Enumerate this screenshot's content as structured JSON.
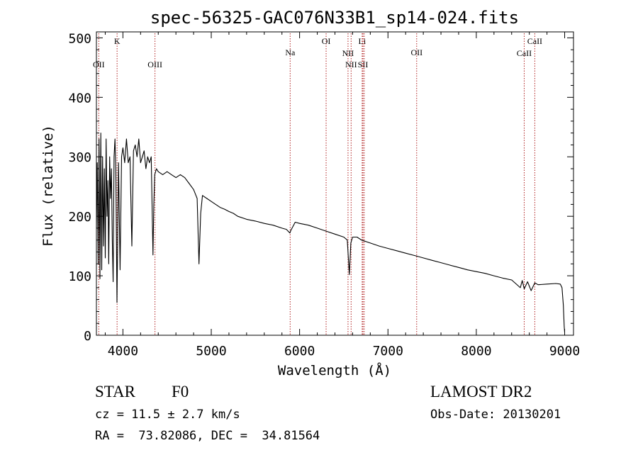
{
  "chart_data": {
    "type": "line",
    "title": "spec-56325-GAC076N33B1_sp14-024.fits",
    "xlabel": "Wavelength (Å)",
    "ylabel": "Flux (relative)",
    "xlim": [
      3700,
      9100
    ],
    "ylim": [
      0,
      510
    ],
    "xticks": [
      4000,
      5000,
      6000,
      7000,
      8000,
      9000
    ],
    "yticks": [
      0,
      100,
      200,
      300,
      400,
      500
    ],
    "grid": false,
    "series": [
      {
        "x": [
          3700,
          3710,
          3720,
          3730,
          3740,
          3750,
          3760,
          3770,
          3780,
          3790,
          3800,
          3810,
          3820,
          3830,
          3840,
          3850,
          3860,
          3870,
          3880,
          3889,
          3900,
          3910,
          3920,
          3933,
          3950,
          3968,
          3985,
          4000,
          4020,
          4040,
          4060,
          4080,
          4101,
          4120,
          4140,
          4160,
          4180,
          4200,
          4220,
          4240,
          4260,
          4280,
          4300,
          4320,
          4340,
          4350,
          4360,
          4380,
          4400,
          4450,
          4500,
          4550,
          4600,
          4650,
          4700,
          4750,
          4800,
          4840,
          4861,
          4880,
          4900,
          4950,
          5000,
          5050,
          5100,
          5150,
          5200,
          5250,
          5300,
          5400,
          5500,
          5600,
          5700,
          5800,
          5850,
          5890,
          5900,
          5950,
          6000,
          6100,
          6200,
          6300,
          6400,
          6500,
          6540,
          6563,
          6580,
          6600,
          6650,
          6700,
          6800,
          6900,
          7000,
          7100,
          7200,
          7300,
          7400,
          7500,
          7600,
          7700,
          7800,
          7900,
          8000,
          8100,
          8200,
          8300,
          8400,
          8498,
          8520,
          8542,
          8580,
          8620,
          8662,
          8700,
          8800,
          8900,
          8950,
          8970,
          8985,
          8995,
          9000
        ],
        "y": [
          180,
          290,
          120,
          330,
          95,
          340,
          110,
          300,
          150,
          280,
          130,
          330,
          200,
          260,
          120,
          300,
          230,
          280,
          160,
          90,
          300,
          330,
          280,
          55,
          290,
          110,
          300,
          315,
          290,
          330,
          290,
          300,
          150,
          310,
          320,
          300,
          330,
          290,
          300,
          310,
          280,
          300,
          290,
          300,
          135,
          220,
          270,
          280,
          275,
          270,
          275,
          270,
          265,
          270,
          265,
          255,
          245,
          230,
          120,
          205,
          235,
          230,
          225,
          220,
          215,
          212,
          208,
          205,
          200,
          195,
          192,
          188,
          185,
          180,
          178,
          172,
          176,
          190,
          188,
          185,
          180,
          175,
          170,
          165,
          160,
          102,
          155,
          165,
          165,
          160,
          155,
          150,
          146,
          142,
          138,
          134,
          130,
          126,
          122,
          118,
          114,
          110,
          107,
          104,
          100,
          96,
          93,
          80,
          92,
          78,
          90,
          75,
          88,
          85,
          86,
          87,
          86,
          80,
          50,
          15,
          5
        ]
      }
    ],
    "line_marks": [
      {
        "label": "K",
        "x": 3934,
        "row": 1
      },
      {
        "label": "OII",
        "x": 3727,
        "row": 2
      },
      {
        "label": "OIII",
        "x": 4363,
        "row": 2
      },
      {
        "label": "Na",
        "x": 5893,
        "row": 2
      },
      {
        "label": "OI",
        "x": 6300,
        "row": 1
      },
      {
        "label": "NII",
        "x": 6548,
        "row": 2
      },
      {
        "label": "NII",
        "x": 6583,
        "row": 3
      },
      {
        "label": "Li",
        "x": 6708,
        "row": 1
      },
      {
        "label": "SII",
        "x": 6717,
        "row": 3
      },
      {
        "label": "SII",
        "x": 6731,
        "row": 3
      },
      {
        "label": "OII",
        "x": 7325,
        "row": 2
      },
      {
        "label": "CaII",
        "x": 8542,
        "row": 2
      },
      {
        "label": "CaII",
        "x": 8662,
        "row": 1
      }
    ]
  },
  "info": {
    "object_class": "STAR",
    "subclass": "F0",
    "survey": "LAMOST DR2",
    "cz": "cz = 11.5 ± 2.7 km/s",
    "obs_date": "Obs-Date: 20130201",
    "coords": "RA =  73.82086, DEC =  34.81564"
  }
}
